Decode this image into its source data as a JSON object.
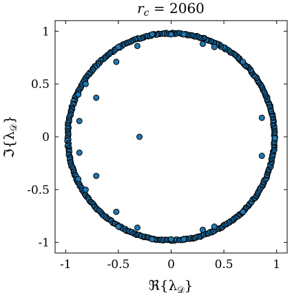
{
  "chart_data": {
    "type": "scatter",
    "title": "r_c = 2060",
    "title_parts": {
      "r": "r",
      "sub": "c",
      "rest": " = 2060"
    },
    "xlabel": "ℜ{λ_D}",
    "ylabel": "ℑ{λ_D}",
    "xlabel_parts": {
      "pre": "ℜ{λ",
      "sub": "𝒟",
      "post": "}"
    },
    "ylabel_parts": {
      "pre": "ℑ{λ",
      "sub": "𝒟",
      "post": "}"
    },
    "xlim": [
      -1.1,
      1.1
    ],
    "ylim": [
      -1.1,
      1.1
    ],
    "xticks": [
      -1,
      -0.5,
      0,
      0.5,
      1
    ],
    "yticks": [
      -1,
      -0.5,
      0,
      0.5,
      1
    ],
    "xtick_labels": [
      "-1",
      "-0.5",
      "0",
      "0.5",
      "1"
    ],
    "ytick_labels": [
      "-1",
      "-0.5",
      "0",
      "0.5",
      "1"
    ],
    "grid": false,
    "marker_color": "#1f77b4",
    "marker_edge": "#000000",
    "ring": {
      "radius": 0.98,
      "count": 420,
      "description": "dense ring of eigenvalues near unit circle"
    },
    "points": [
      {
        "x": -0.3,
        "y": 0.0
      },
      {
        "x": -0.71,
        "y": 0.37
      },
      {
        "x": -0.71,
        "y": -0.37
      },
      {
        "x": -0.87,
        "y": 0.15
      },
      {
        "x": -0.87,
        "y": -0.15
      },
      {
        "x": -0.81,
        "y": 0.5
      },
      {
        "x": -0.81,
        "y": -0.5
      },
      {
        "x": -0.52,
        "y": 0.71
      },
      {
        "x": -0.52,
        "y": -0.71
      },
      {
        "x": -0.32,
        "y": 0.86
      },
      {
        "x": -0.32,
        "y": -0.86
      },
      {
        "x": 0.3,
        "y": 0.88
      },
      {
        "x": 0.3,
        "y": -0.88
      },
      {
        "x": 0.86,
        "y": 0.18
      },
      {
        "x": 0.86,
        "y": -0.18
      },
      {
        "x": 0.41,
        "y": 0.85
      },
      {
        "x": 0.41,
        "y": -0.85
      },
      {
        "x": -0.5,
        "y": 0.85
      },
      {
        "x": -0.5,
        "y": -0.85
      },
      {
        "x": 0.0,
        "y": 0.97
      },
      {
        "x": 0.0,
        "y": -0.97
      },
      {
        "x": -0.88,
        "y": 0.4
      },
      {
        "x": -0.88,
        "y": -0.4
      },
      {
        "x": 0.68,
        "y": 0.71
      },
      {
        "x": 0.68,
        "y": -0.71
      },
      {
        "x": -0.18,
        "y": 0.97
      },
      {
        "x": -0.18,
        "y": -0.97
      },
      {
        "x": 0.12,
        "y": 0.97
      },
      {
        "x": 0.12,
        "y": -0.97
      }
    ]
  }
}
